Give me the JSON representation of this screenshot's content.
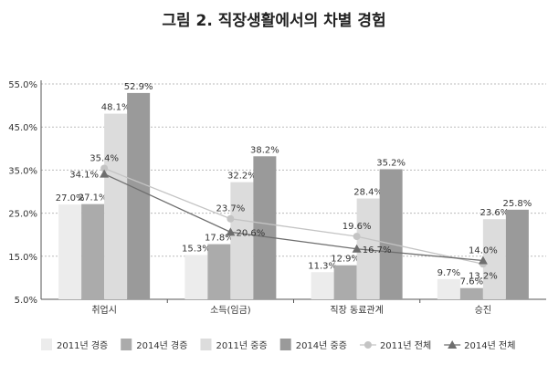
{
  "chart_data": {
    "type": "bar",
    "title": "그림 2. 직장생활에서의 차별 경험",
    "categories": [
      "취업시",
      "소득(임금)",
      "직장 동료관계",
      "승진"
    ],
    "ylim": [
      5.0,
      55.0
    ],
    "yticks": [
      "5.0%",
      "15.0%",
      "25.0%",
      "35.0%",
      "45.0%",
      "55.0%"
    ],
    "grid": true,
    "legend": "bottom",
    "series": [
      {
        "name": "2011년 경증",
        "type": "bar",
        "color": "#ececec",
        "values": [
          27.0,
          15.3,
          11.3,
          9.7
        ],
        "labels": [
          "27.0%",
          "15.3%",
          "11.3%",
          "9.7%"
        ]
      },
      {
        "name": "2014년 경증",
        "type": "bar",
        "color": "#ababab",
        "values": [
          27.1,
          17.8,
          12.9,
          7.6
        ],
        "labels": [
          "27.1%",
          "17.8%",
          "12.9%",
          "7.6%"
        ]
      },
      {
        "name": "2011년 중증",
        "type": "bar",
        "color": "#dcdcdc",
        "values": [
          48.1,
          32.2,
          28.4,
          23.6
        ],
        "labels": [
          "48.1%",
          "32.2%",
          "28.4%",
          "23.6%"
        ]
      },
      {
        "name": "2014년 중증",
        "type": "bar",
        "color": "#9a9a9a",
        "values": [
          52.9,
          38.2,
          35.2,
          25.8
        ],
        "labels": [
          "52.9%",
          "38.2%",
          "35.2%",
          "25.8%"
        ]
      },
      {
        "name": "2011년 전체",
        "type": "line",
        "marker": "circle",
        "color": "#c4c4c4",
        "values": [
          35.4,
          23.7,
          19.6,
          13.2
        ],
        "labels": [
          "35.4%",
          "23.7%",
          "19.6%",
          "13.2%"
        ]
      },
      {
        "name": "2014년 전체",
        "type": "line",
        "marker": "triangle",
        "color": "#6e6e6e",
        "values": [
          34.1,
          20.6,
          16.7,
          14.0
        ],
        "labels": [
          "34.1%",
          "20.6%",
          "16.7%",
          "14.0%"
        ]
      }
    ]
  }
}
